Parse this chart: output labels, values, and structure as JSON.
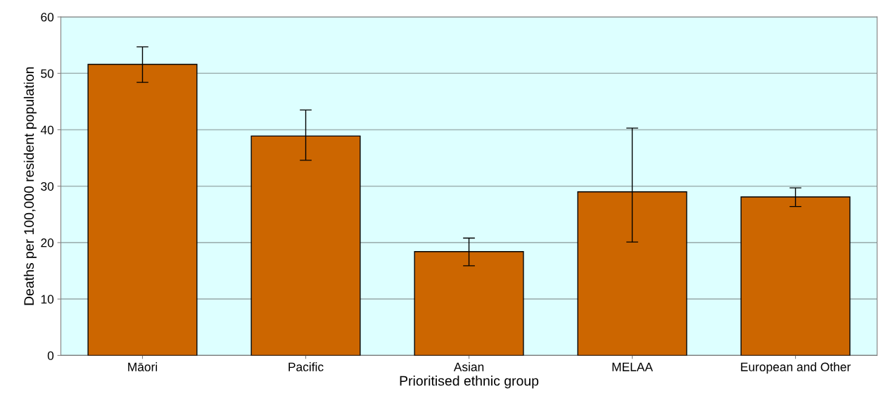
{
  "chart_data": {
    "type": "bar",
    "xlabel": "Prioritised ethnic group",
    "ylabel": "Deaths per 100,000 resident population",
    "categories": [
      "Māori",
      "Pacific",
      "Asian",
      "MELAA",
      "European and Other"
    ],
    "values": [
      51.6,
      38.9,
      18.4,
      29.0,
      28.1
    ],
    "errors": [
      [
        48.4,
        54.7
      ],
      [
        34.6,
        43.5
      ],
      [
        15.9,
        20.8
      ],
      [
        20.1,
        40.3
      ],
      [
        26.4,
        29.7
      ]
    ],
    "color": "#cc6600",
    "ylim": [
      0,
      60
    ],
    "yticks": [
      0,
      10,
      20,
      30,
      40,
      50,
      60
    ],
    "grid": "y"
  }
}
